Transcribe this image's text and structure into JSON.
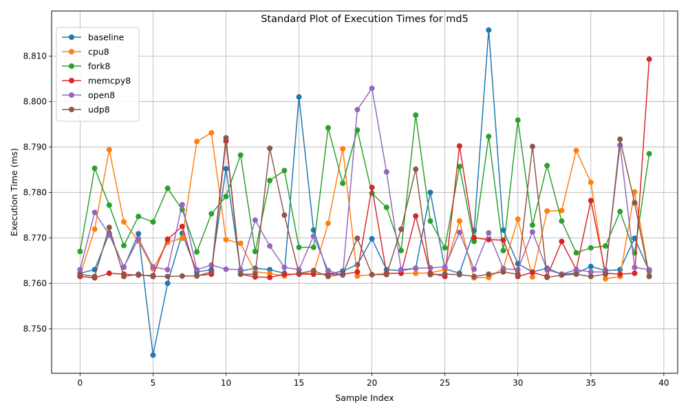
{
  "chart_data": {
    "type": "line",
    "title": "Standard Plot of Execution Times for md5",
    "xlabel": "Sample Index",
    "ylabel": "Execution Time (ms)",
    "xlim": [
      -1.95,
      40.95
    ],
    "ylim": [
      8.7402,
      8.8199
    ],
    "xticks": [
      0,
      5,
      10,
      15,
      20,
      25,
      30,
      35,
      40
    ],
    "yticks": [
      8.75,
      8.76,
      8.77,
      8.78,
      8.79,
      8.8,
      8.81
    ],
    "ytick_labels": [
      "8.750",
      "8.760",
      "8.770",
      "8.780",
      "8.790",
      "8.800",
      "8.810"
    ],
    "grid": true,
    "legend_position": "top-left",
    "x": [
      0,
      1,
      2,
      3,
      4,
      5,
      6,
      7,
      8,
      9,
      10,
      11,
      12,
      13,
      14,
      15,
      16,
      17,
      18,
      19,
      20,
      21,
      22,
      23,
      24,
      25,
      26,
      27,
      28,
      29,
      30,
      31,
      32,
      33,
      34,
      35,
      36,
      37,
      38,
      39
    ],
    "series": [
      {
        "name": "baseline",
        "color": "#1f77b4",
        "values": [
          8.7622,
          8.763,
          8.771,
          8.7635,
          8.7709,
          8.7442,
          8.76,
          8.771,
          8.7625,
          8.763,
          8.7852,
          8.7627,
          8.7633,
          8.763,
          8.7622,
          8.801,
          8.7717,
          8.762,
          8.7627,
          8.7641,
          8.7698,
          8.763,
          8.7628,
          8.7633,
          8.78,
          8.7632,
          8.7622,
          8.7716,
          8.8157,
          8.7717,
          8.7643,
          8.7625,
          8.7633,
          8.762,
          8.7622,
          8.7637,
          8.7628,
          8.763,
          8.7699,
          8.7627
        ]
      },
      {
        "name": "cpu8",
        "color": "#ff7f0e",
        "values": [
          8.7617,
          8.7719,
          8.7894,
          8.7735,
          8.7693,
          8.7632,
          8.769,
          8.7699,
          8.7912,
          8.7931,
          8.7696,
          8.7688,
          8.7625,
          8.7622,
          8.7616,
          8.7622,
          8.7622,
          8.7732,
          8.7896,
          8.7616,
          8.7619,
          8.7622,
          8.7622,
          8.7622,
          8.7623,
          8.763,
          8.7737,
          8.7612,
          8.7613,
          8.7633,
          8.7741,
          8.7614,
          8.7759,
          8.776,
          8.7892,
          8.7822,
          8.761,
          8.7615,
          8.7801,
          8.7617
        ]
      },
      {
        "name": "fork8",
        "color": "#2ca02c",
        "values": [
          8.767,
          8.7853,
          8.7772,
          8.7683,
          8.7747,
          8.7735,
          8.7809,
          8.7762,
          8.7669,
          8.7753,
          8.7791,
          8.7882,
          8.767,
          8.7826,
          8.7848,
          8.7679,
          8.7679,
          8.7942,
          8.782,
          8.7937,
          8.7798,
          8.7767,
          8.7672,
          8.797,
          8.7737,
          8.7678,
          8.7857,
          8.7692,
          8.7923,
          8.7672,
          8.7959,
          8.7728,
          8.7859,
          8.7737,
          8.7667,
          8.7678,
          8.7682,
          8.7758,
          8.7667,
          8.7885
        ]
      },
      {
        "name": "memcpy8",
        "color": "#d62728",
        "values": [
          8.7615,
          8.7612,
          8.7622,
          8.762,
          8.7618,
          8.7617,
          8.7697,
          8.7725,
          8.7617,
          8.762,
          8.7913,
          8.762,
          8.7614,
          8.7613,
          8.762,
          8.762,
          8.762,
          8.762,
          8.762,
          8.7625,
          8.7811,
          8.7622,
          8.7622,
          8.7748,
          8.7622,
          8.7615,
          8.7902,
          8.77,
          8.7696,
          8.7695,
          8.7615,
          8.7624,
          8.7615,
          8.7692,
          8.763,
          8.7782,
          8.7622,
          8.762,
          8.7622,
          8.8093
        ]
      },
      {
        "name": "open8",
        "color": "#9467bd",
        "values": [
          8.763,
          8.7756,
          8.7707,
          8.7636,
          8.7698,
          8.7636,
          8.763,
          8.7773,
          8.763,
          8.764,
          8.7631,
          8.763,
          8.7739,
          8.7682,
          8.7635,
          8.763,
          8.7704,
          8.7628,
          8.7618,
          8.7982,
          8.8029,
          8.7845,
          8.763,
          8.7633,
          8.7634,
          8.7636,
          8.7712,
          8.7631,
          8.7711,
          8.7632,
          8.763,
          8.7713,
          8.763,
          8.762,
          8.763,
          8.7625,
          8.7625,
          8.7904,
          8.7635,
          8.763
        ]
      },
      {
        "name": "udp8",
        "color": "#8c564b",
        "values": [
          8.762,
          8.7615,
          8.7723,
          8.7615,
          8.762,
          8.7615,
          8.7615,
          8.7616,
          8.7616,
          8.7625,
          8.792,
          8.762,
          8.762,
          8.7897,
          8.775,
          8.7622,
          8.7628,
          8.7615,
          8.762,
          8.7699,
          8.7619,
          8.7619,
          8.7719,
          8.7851,
          8.7619,
          8.762,
          8.7619,
          8.7615,
          8.762,
          8.7625,
          8.762,
          8.7901,
          8.7613,
          8.7618,
          8.762,
          8.7615,
          8.762,
          8.7917,
          8.7777,
          8.7615
        ]
      }
    ]
  }
}
